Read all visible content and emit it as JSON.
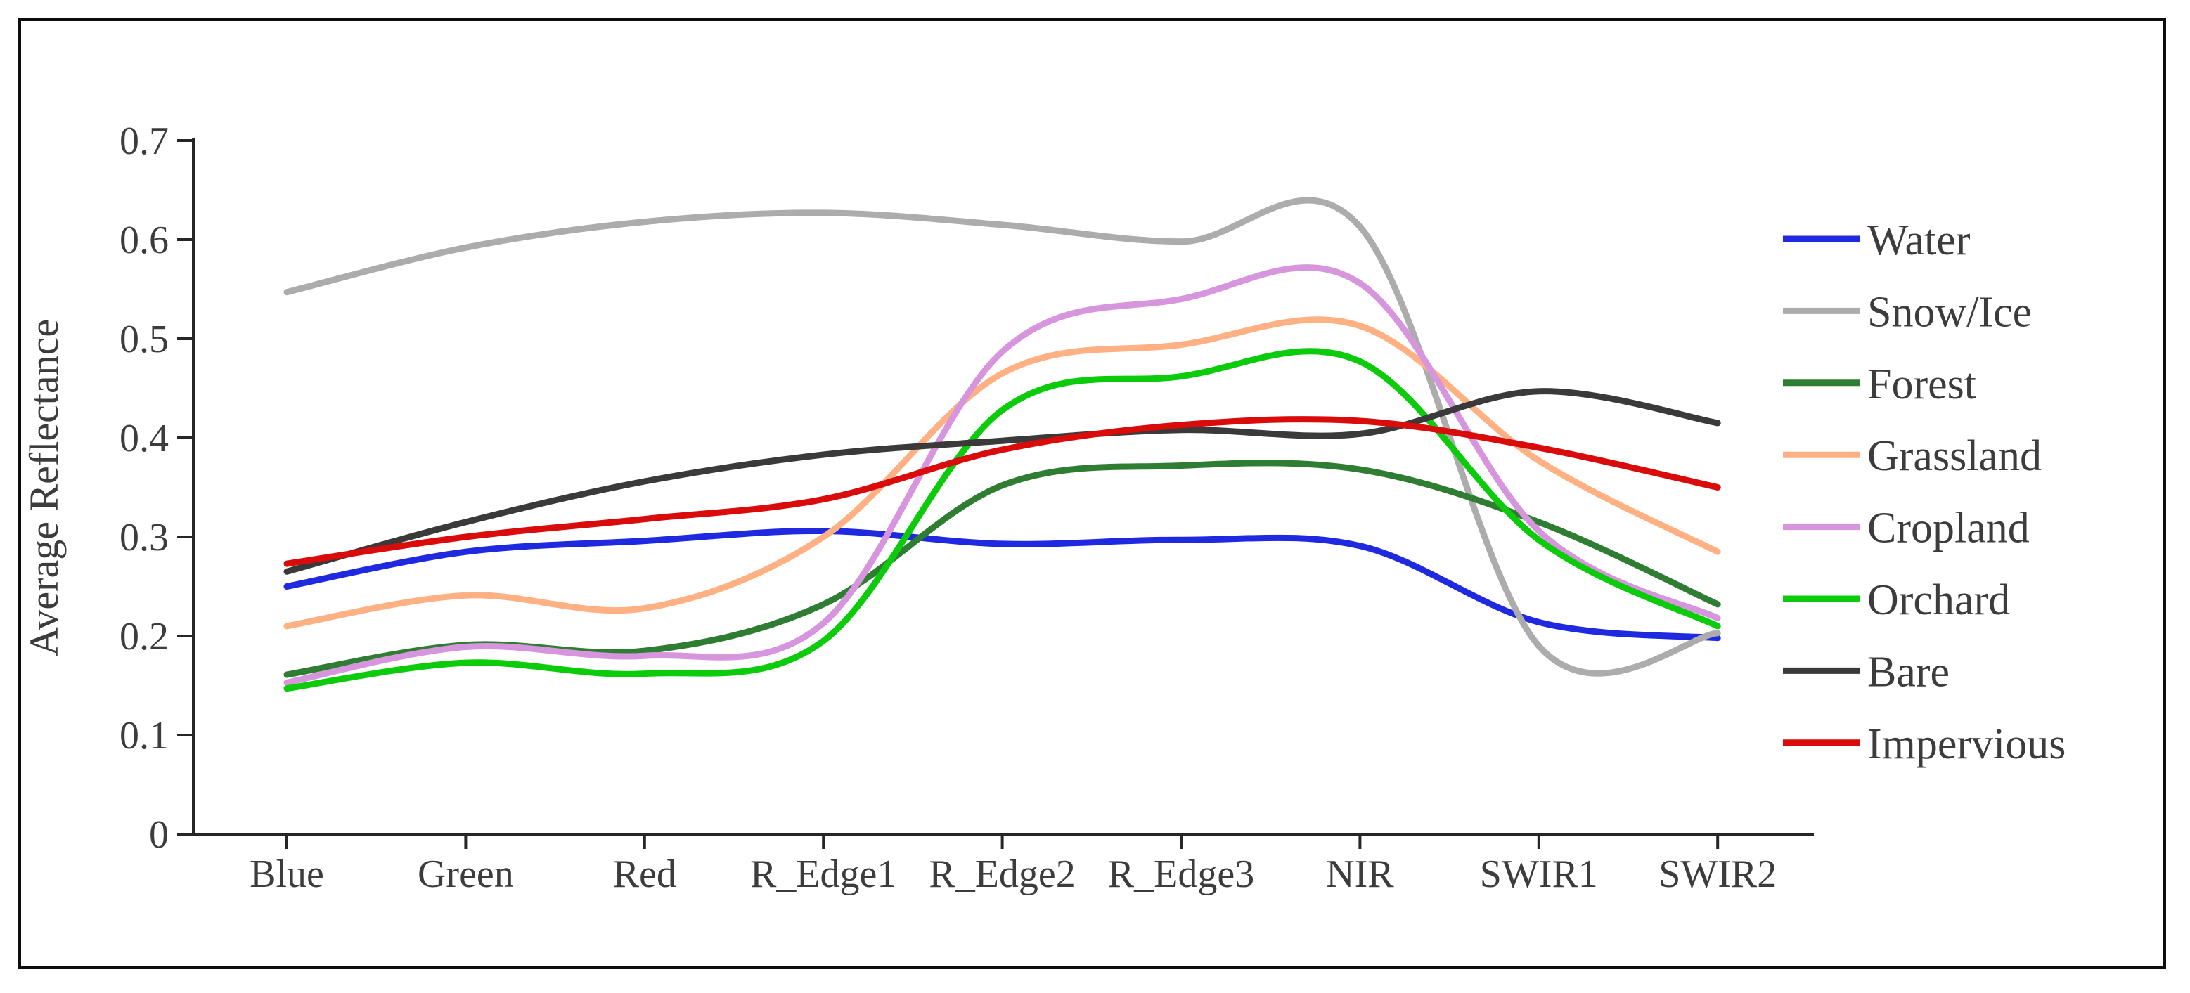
{
  "figure": {
    "background": "#ffffff",
    "border_color": "#0d0d0d",
    "axis_color": "#262626",
    "text_color": "#3c3c3c"
  },
  "chart_data": {
    "type": "line",
    "title": "",
    "xlabel": "",
    "ylabel": "Average Reflectance",
    "ylim": [
      0,
      0.7
    ],
    "grid": false,
    "legend_position": "right",
    "y_ticks": [
      {
        "value": 0.0,
        "label": "0"
      },
      {
        "value": 0.1,
        "label": "0.1"
      },
      {
        "value": 0.2,
        "label": "0.2"
      },
      {
        "value": 0.3,
        "label": "0.3"
      },
      {
        "value": 0.4,
        "label": "0.4"
      },
      {
        "value": 0.5,
        "label": "0.5"
      },
      {
        "value": 0.6,
        "label": "0.6"
      },
      {
        "value": 0.7,
        "label": "0.7"
      }
    ],
    "categories": [
      "Blue",
      "Green",
      "Red",
      "R_Edge1",
      "R_Edge2",
      "R_Edge3",
      "NIR",
      "SWIR1",
      "SWIR2"
    ],
    "series": [
      {
        "name": "Water",
        "color": "#1f2ae0",
        "values": [
          0.25,
          0.285,
          0.296,
          0.306,
          0.293,
          0.297,
          0.291,
          0.214,
          0.198
        ]
      },
      {
        "name": "Snow/Ice",
        "color": "#acacac",
        "values": [
          0.547,
          0.592,
          0.618,
          0.627,
          0.615,
          0.598,
          0.613,
          0.19,
          0.203
        ]
      },
      {
        "name": "Forest",
        "color": "#2e7d32",
        "values": [
          0.161,
          0.191,
          0.185,
          0.232,
          0.352,
          0.372,
          0.368,
          0.315,
          0.232
        ]
      },
      {
        "name": "Grassland",
        "color": "#ffb183",
        "values": [
          0.21,
          0.241,
          0.228,
          0.3,
          0.465,
          0.494,
          0.513,
          0.377,
          0.285
        ]
      },
      {
        "name": "Cropland",
        "color": "#d695dd",
        "values": [
          0.153,
          0.189,
          0.18,
          0.213,
          0.487,
          0.54,
          0.556,
          0.306,
          0.218
        ]
      },
      {
        "name": "Orchard",
        "color": "#0bcb0b",
        "values": [
          0.147,
          0.173,
          0.162,
          0.195,
          0.428,
          0.462,
          0.477,
          0.297,
          0.21
        ]
      },
      {
        "name": "Bare",
        "color": "#3a3a3a",
        "values": [
          0.265,
          0.315,
          0.356,
          0.383,
          0.397,
          0.408,
          0.404,
          0.447,
          0.415
        ]
      },
      {
        "name": "Impervious",
        "color": "#da0b0b",
        "values": [
          0.273,
          0.3,
          0.318,
          0.338,
          0.388,
          0.413,
          0.417,
          0.39,
          0.35
        ]
      }
    ]
  }
}
